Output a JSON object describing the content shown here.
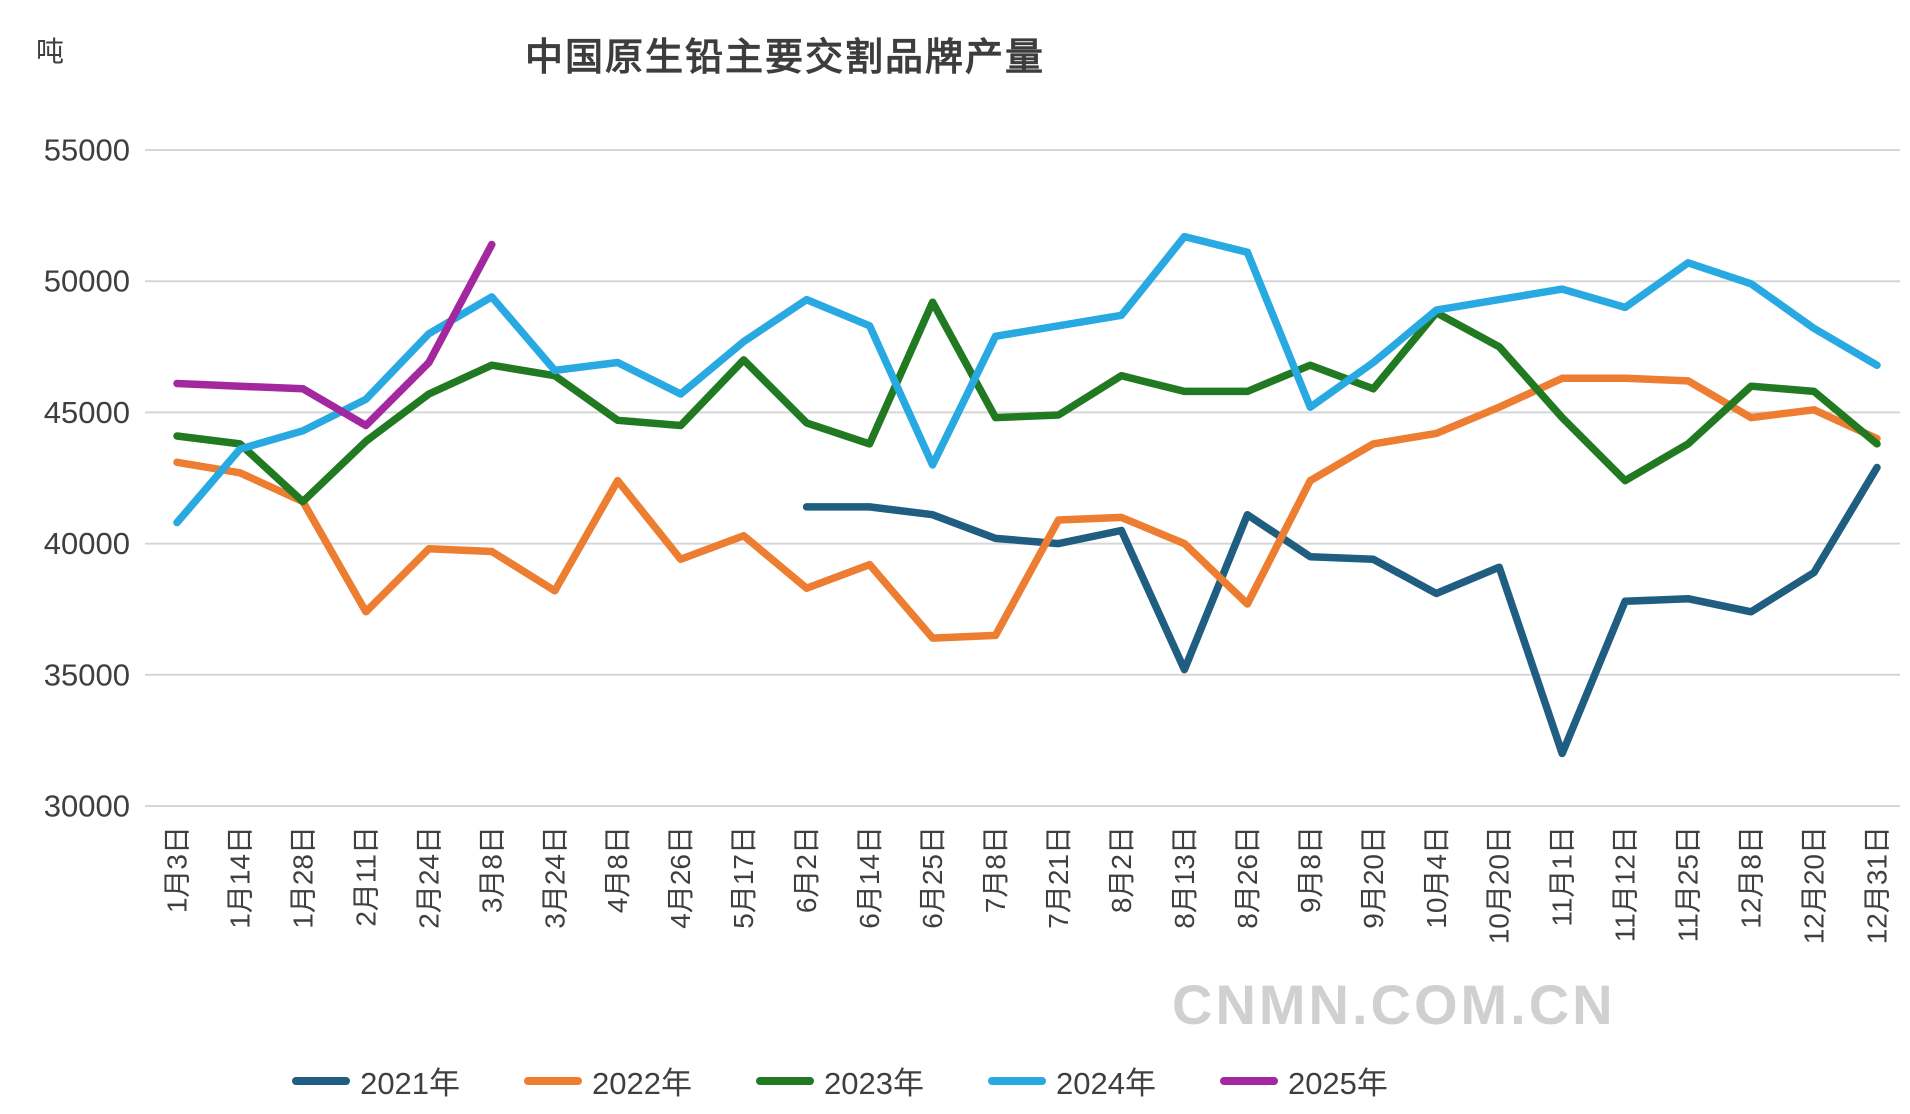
{
  "title": "中国原生铅主要交割品牌产量",
  "unit_label": "吨",
  "watermark": "CNMN.COM.CN",
  "chart_data": {
    "type": "line",
    "title": "中国原生铅主要交割品牌产量",
    "ylabel": "吨",
    "xlabel": "",
    "ylim": [
      30000,
      55000
    ],
    "y_ticks": [
      55000,
      50000,
      45000,
      40000,
      35000,
      30000
    ],
    "grid": "horizontal",
    "legend_position": "bottom",
    "categories": [
      "1月3日",
      "1月14日",
      "1月28日",
      "2月11日",
      "2月24日",
      "3月8日",
      "3月24日",
      "4月8日",
      "4月26日",
      "5月17日",
      "6月2日",
      "6月14日",
      "6月25日",
      "7月8日",
      "7月21日",
      "8月2日",
      "8月13日",
      "8月26日",
      "9月8日",
      "9月20日",
      "10月4日",
      "10月20日",
      "11月1日",
      "11月12日",
      "11月25日",
      "12月8日",
      "12月20日",
      "12月31日"
    ],
    "series": [
      {
        "name": "2021年",
        "color": "#1F5E80",
        "values": [
          null,
          null,
          null,
          null,
          null,
          null,
          null,
          null,
          null,
          null,
          41400,
          41400,
          41100,
          40200,
          40000,
          40500,
          35200,
          41100,
          39500,
          39400,
          38100,
          39100,
          32000,
          37800,
          37900,
          37400,
          38900,
          42900
        ]
      },
      {
        "name": "2022年",
        "color": "#ED7D31",
        "values": [
          43100,
          42700,
          41600,
          37400,
          39800,
          39700,
          38200,
          42400,
          39400,
          40300,
          38300,
          39200,
          36400,
          36500,
          40900,
          41000,
          40000,
          37700,
          42400,
          43800,
          44200,
          45200,
          46300,
          46300,
          46200,
          44800,
          45100,
          44000
        ]
      },
      {
        "name": "2023年",
        "color": "#217A21",
        "values": [
          44100,
          43800,
          41600,
          43900,
          45700,
          46800,
          46400,
          44700,
          44500,
          47000,
          44600,
          43800,
          49200,
          44800,
          44900,
          46400,
          45800,
          45800,
          46800,
          45900,
          48800,
          47500,
          44800,
          42400,
          43800,
          46000,
          45800,
          43800
        ]
      },
      {
        "name": "2024年",
        "color": "#29A9E1",
        "values": [
          40800,
          43600,
          44300,
          45500,
          48000,
          49400,
          46600,
          46900,
          45700,
          47700,
          49300,
          48300,
          43000,
          47900,
          48300,
          48700,
          51700,
          51100,
          45200,
          46900,
          48900,
          49300,
          49700,
          49000,
          50700,
          49900,
          48200,
          46800
        ]
      },
      {
        "name": "2025年",
        "color": "#A3289F",
        "values": [
          46100,
          46000,
          45900,
          44500,
          46900,
          51400,
          null,
          null,
          null,
          null,
          null,
          null,
          null,
          null,
          null,
          null,
          null,
          null,
          null,
          null,
          null,
          null,
          null,
          null,
          null,
          null,
          null,
          null
        ]
      }
    ]
  }
}
